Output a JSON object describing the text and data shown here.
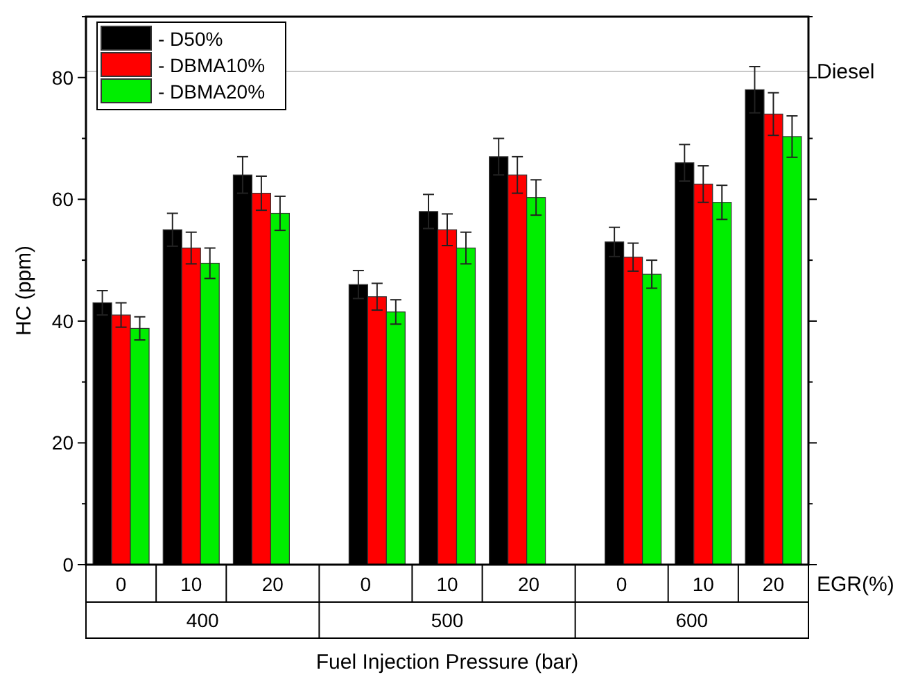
{
  "chart_data": {
    "type": "bar",
    "xlabel": "Fuel Injection Pressure (bar)",
    "ylabel": "HC (ppm)",
    "categories": [
      "0",
      "10",
      "20",
      "0",
      "10",
      "20",
      "0",
      "10",
      "20"
    ],
    "series": [
      {
        "name": "- D50%",
        "color": "#000000",
        "values": [
          43,
          55,
          64,
          46,
          58,
          67,
          53,
          66,
          78
        ],
        "errors": [
          2,
          2.7,
          3,
          2.3,
          2.8,
          3,
          2.4,
          3,
          3.8
        ]
      },
      {
        "name": "- DBMA10%",
        "color": "#ff0000",
        "values": [
          41,
          52,
          61,
          44,
          55,
          64,
          50.5,
          62.5,
          74
        ],
        "errors": [
          2,
          2.6,
          2.8,
          2.2,
          2.6,
          3,
          2.3,
          3,
          3.5
        ]
      },
      {
        "name": "- DBMA20%",
        "color": "#00ee00",
        "values": [
          38.8,
          49.5,
          57.7,
          41.5,
          52,
          60.3,
          47.7,
          59.5,
          70.3
        ],
        "errors": [
          1.9,
          2.5,
          2.8,
          2,
          2.6,
          2.9,
          2.3,
          2.8,
          3.4
        ]
      }
    ],
    "ylim": [
      0,
      90
    ],
    "yticks": [
      0,
      20,
      40,
      60,
      80
    ],
    "ref_lines": [
      {
        "axis": "y",
        "value": 81,
        "label": "Diesel",
        "color": "#c8c8c8"
      }
    ],
    "annotations": [
      "EGR(%)",
      "400",
      "500",
      "600"
    ],
    "legend": "top left",
    "grid": false
  }
}
